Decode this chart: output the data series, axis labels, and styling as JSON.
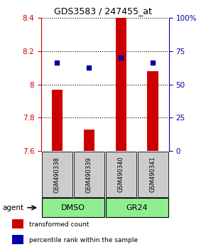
{
  "title": "GDS3583 / 247455_at",
  "samples": [
    "GSM490338",
    "GSM490339",
    "GSM490340",
    "GSM490341"
  ],
  "bar_values": [
    7.97,
    7.73,
    8.4,
    8.08
  ],
  "bar_bottom": 7.6,
  "percentile_values": [
    8.13,
    8.1,
    8.16,
    8.13
  ],
  "ylim_left": [
    7.6,
    8.4
  ],
  "ylim_right": [
    0,
    100
  ],
  "yticks_left": [
    7.6,
    7.8,
    8.0,
    8.2,
    8.4
  ],
  "ytick_labels_left": [
    "7.6",
    "7.8",
    "8",
    "8.2",
    "8.4"
  ],
  "yticks_right": [
    0,
    25,
    50,
    75,
    100
  ],
  "ytick_labels_right": [
    "0",
    "25",
    "50",
    "75",
    "100%"
  ],
  "agent_label": "agent",
  "bar_color": "#CC0000",
  "percentile_color": "#0000AA",
  "legend_items": [
    {
      "color": "#CC0000",
      "label": "transformed count"
    },
    {
      "color": "#0000AA",
      "label": "percentile rank within the sample"
    }
  ],
  "background_color": "#ffffff",
  "sample_box_color": "#cccccc",
  "group_box_color": "#90EE90",
  "dmso_label": "DMSO",
  "gr24_label": "GR24"
}
